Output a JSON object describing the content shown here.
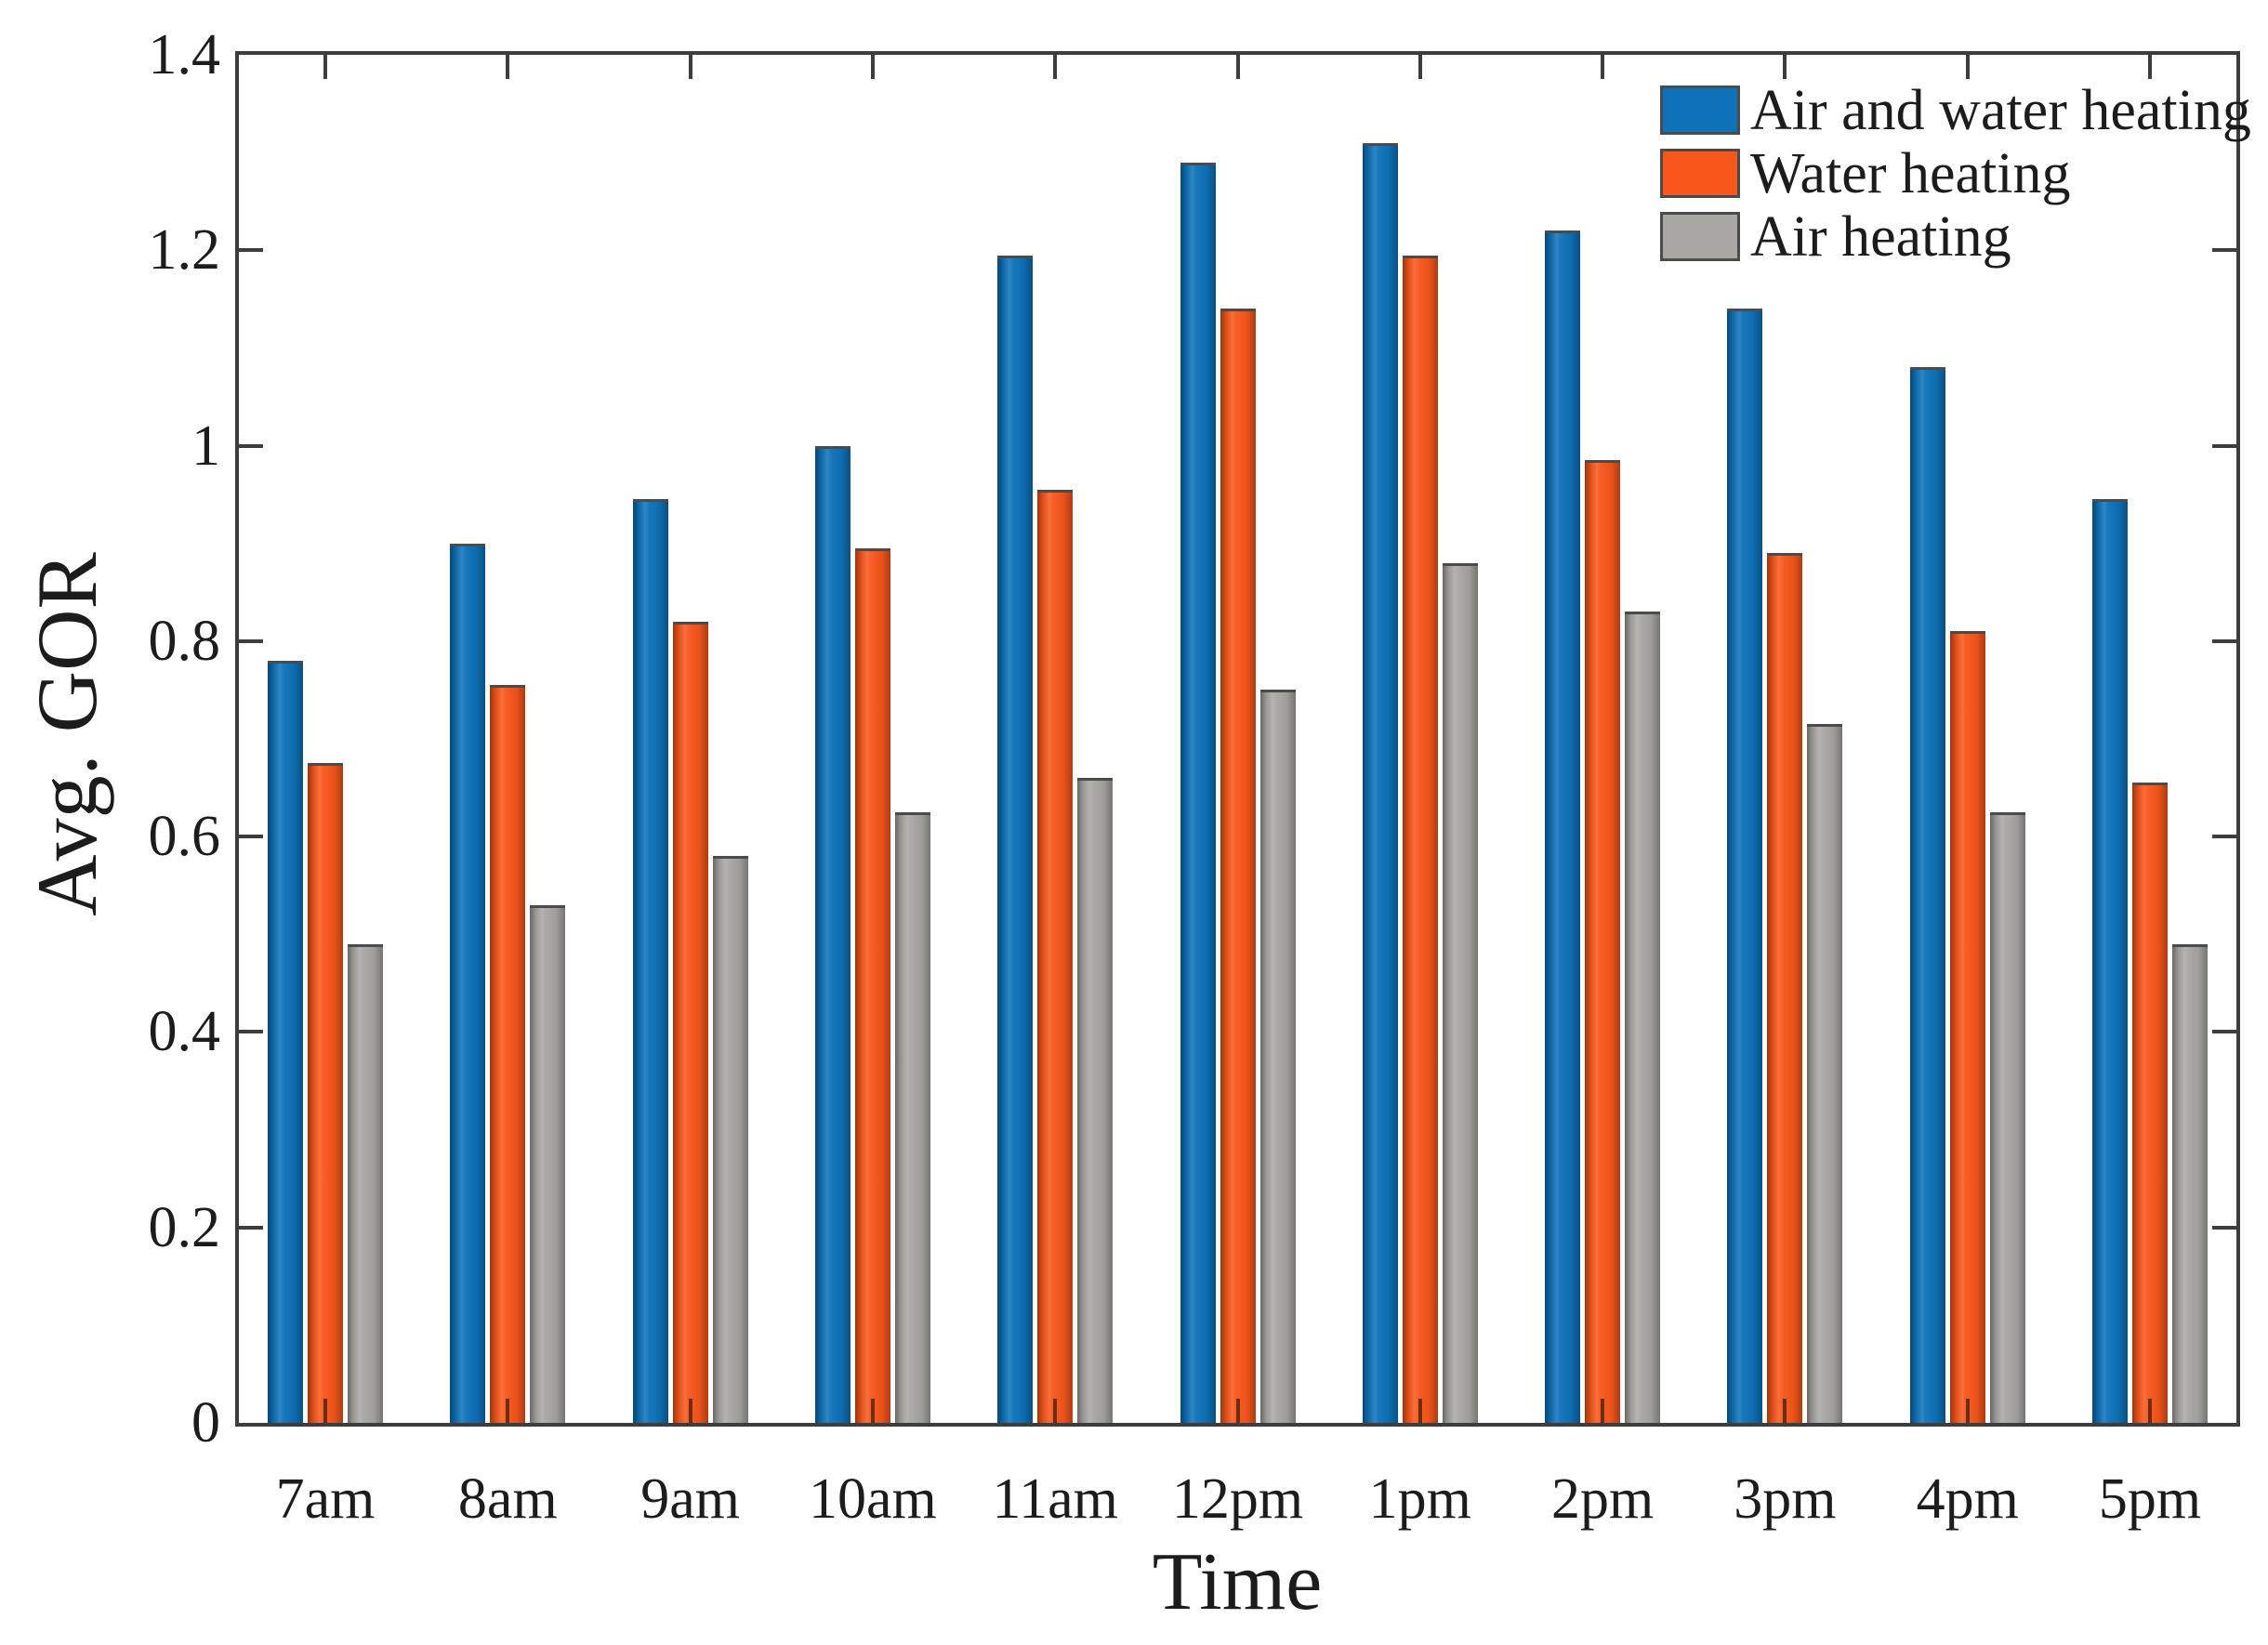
{
  "chart_data": {
    "type": "bar",
    "title": "",
    "xlabel": "Time",
    "ylabel": "Avg. GOR",
    "categories": [
      "7am",
      "8am",
      "9am",
      "10am",
      "11am",
      "12pm",
      "1pm",
      "2pm",
      "3pm",
      "4pm",
      "5pm"
    ],
    "series": [
      {
        "name": "Air and water heating",
        "color": "#0e72b9",
        "values": [
          0.78,
          0.9,
          0.945,
          1.0,
          1.195,
          1.29,
          1.31,
          1.22,
          1.14,
          1.08,
          0.945
        ]
      },
      {
        "name": "Water heating",
        "color": "#f8571b",
        "values": [
          0.675,
          0.755,
          0.82,
          0.895,
          0.955,
          1.14,
          1.195,
          0.985,
          0.89,
          0.81,
          0.655
        ]
      },
      {
        "name": "Air heating",
        "color": "#a9a7a3",
        "values": [
          0.49,
          0.53,
          0.58,
          0.625,
          0.66,
          0.75,
          0.88,
          0.83,
          0.715,
          0.625,
          0.49
        ]
      }
    ],
    "ylim": [
      0,
      1.4
    ],
    "ytick_values": [
      0,
      0.2,
      0.4,
      0.6,
      0.8,
      1.0,
      1.2,
      1.4
    ],
    "yticks": [
      "0",
      "0.2",
      "0.4",
      "0.6",
      "0.8",
      "1",
      "1.2",
      "1.4"
    ],
    "grid": "off",
    "legend_position": "top-right",
    "colors": {
      "axis": "#3d3d3d",
      "text": "#1c1c1c",
      "bar_edge": "#4b4b4b",
      "bottom_tick_on_bar": "#6e2c10",
      "background": "#ffffff"
    }
  }
}
